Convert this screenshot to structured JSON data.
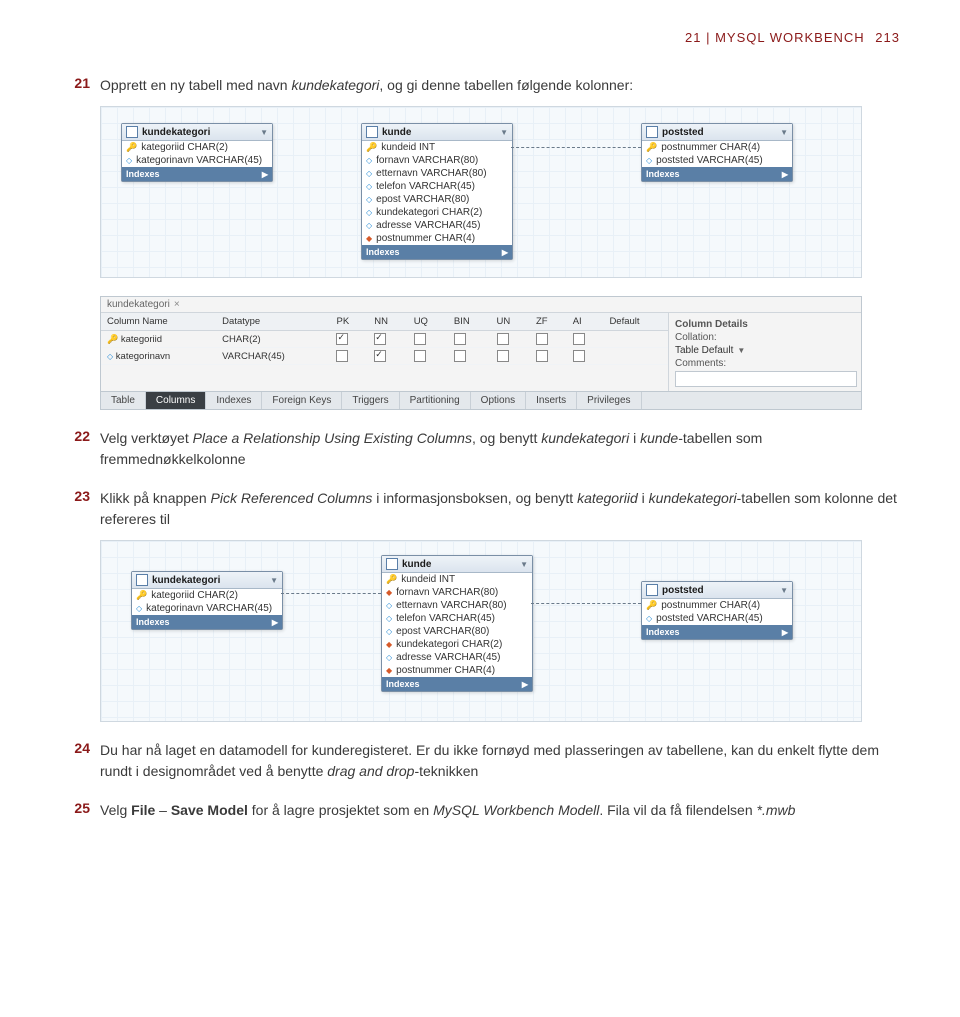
{
  "header": {
    "chapter": "21 | MYSQL WORKBENCH",
    "page": "213"
  },
  "steps": {
    "s21": {
      "num": "21",
      "html": "Opprett en ny tabell med navn <em>kundekategori</em>, og gi denne tabellen følgende kolonner:"
    },
    "s22": {
      "num": "22",
      "html": "Velg verktøyet <em>Place a Relationship Using Existing Columns</em>, og benytt <em>kundekategori</em> i <em>kunde</em>-tabellen som fremmednøkkelkolonne"
    },
    "s23": {
      "num": "23",
      "html": "Klikk på knappen <em>Pick Referenced Columns</em> i informasjonsboksen, og benytt <em>kategoriid</em> i <em>kundekategori</em>-tabellen som kolonne det refereres til"
    },
    "s24": {
      "num": "24",
      "html": "Du har nå laget en datamodell for kunderegisteret. Er du ikke fornøyd med plasseringen av tabellene, kan du enkelt flytte dem rundt i designområdet ved å benytte <em>drag and drop</em>-teknikken"
    },
    "s25": {
      "num": "25",
      "html": "Velg <strong>File</strong> – <strong>Save Model</strong> for å lagre prosjektet som en <em>MySQL Workbench Modell</em>. Fila vil da få filendelsen <em>*.mwb</em>"
    }
  },
  "tables": {
    "kundekategori": {
      "title": "kundekategori",
      "cols": [
        {
          "icon": "key",
          "text": "kategoriid CHAR(2)"
        },
        {
          "icon": "dot",
          "text": "kategorinavn VARCHAR(45)"
        }
      ],
      "foot": "Indexes"
    },
    "kunde": {
      "title": "kunde",
      "cols": [
        {
          "icon": "key",
          "text": "kundeid INT"
        },
        {
          "icon": "dot",
          "text": "fornavn VARCHAR(80)"
        },
        {
          "icon": "dot",
          "text": "etternavn VARCHAR(80)"
        },
        {
          "icon": "dot",
          "text": "telefon VARCHAR(45)"
        },
        {
          "icon": "dot",
          "text": "epost VARCHAR(80)"
        },
        {
          "icon": "dot",
          "text": "kundekategori CHAR(2)"
        },
        {
          "icon": "dot",
          "text": "adresse VARCHAR(45)"
        },
        {
          "icon": "red",
          "text": "postnummer CHAR(4)"
        }
      ],
      "foot": "Indexes"
    },
    "poststed": {
      "title": "poststed",
      "cols": [
        {
          "icon": "key",
          "text": "postnummer CHAR(4)"
        },
        {
          "icon": "dot",
          "text": "poststed VARCHAR(45)"
        }
      ],
      "foot": "Indexes"
    }
  },
  "editor": {
    "breadcrumb": "kundekategori",
    "headers": [
      "Column Name",
      "Datatype",
      "PK",
      "NN",
      "UQ",
      "BIN",
      "UN",
      "ZF",
      "AI",
      "Default"
    ],
    "rows": [
      {
        "icon": "key",
        "name": "kategoriid",
        "datatype": "CHAR(2)",
        "pk": true,
        "nn": true,
        "uq": false,
        "bin": false,
        "un": false,
        "zf": false,
        "ai": false,
        "def": ""
      },
      {
        "icon": "dot",
        "name": "kategorinavn",
        "datatype": "VARCHAR(45)",
        "pk": false,
        "nn": true,
        "uq": false,
        "bin": false,
        "un": false,
        "zf": false,
        "ai": false,
        "def": ""
      }
    ],
    "side": {
      "title": "Column Details",
      "labels": [
        "Collation:",
        "Table Default",
        "Comments:"
      ]
    },
    "tabs": [
      "Table",
      "Columns",
      "Indexes",
      "Foreign Keys",
      "Triggers",
      "Partitioning",
      "Options",
      "Inserts",
      "Privileges"
    ],
    "activeTab": "Columns"
  },
  "diagram3": {
    "kundekategori": {
      "title": "kundekategori",
      "cols": [
        {
          "icon": "key",
          "text": "kategoriid CHAR(2)"
        },
        {
          "icon": "dot",
          "text": "kategorinavn VARCHAR(45)"
        }
      ],
      "foot": "Indexes"
    },
    "kunde": {
      "title": "kunde",
      "cols": [
        {
          "icon": "key",
          "text": "kundeid INT"
        },
        {
          "icon": "red",
          "text": "fornavn VARCHAR(80)"
        },
        {
          "icon": "dot",
          "text": "etternavn VARCHAR(80)"
        },
        {
          "icon": "dot",
          "text": "telefon VARCHAR(45)"
        },
        {
          "icon": "dot",
          "text": "epost VARCHAR(80)"
        },
        {
          "icon": "red",
          "text": "kundekategori CHAR(2)"
        },
        {
          "icon": "dot",
          "text": "adresse VARCHAR(45)"
        },
        {
          "icon": "red",
          "text": "postnummer CHAR(4)"
        }
      ],
      "foot": "Indexes"
    },
    "poststed": {
      "title": "poststed",
      "cols": [
        {
          "icon": "key",
          "text": "postnummer CHAR(4)"
        },
        {
          "icon": "dot",
          "text": "poststed VARCHAR(45)"
        }
      ],
      "foot": "Indexes"
    }
  }
}
